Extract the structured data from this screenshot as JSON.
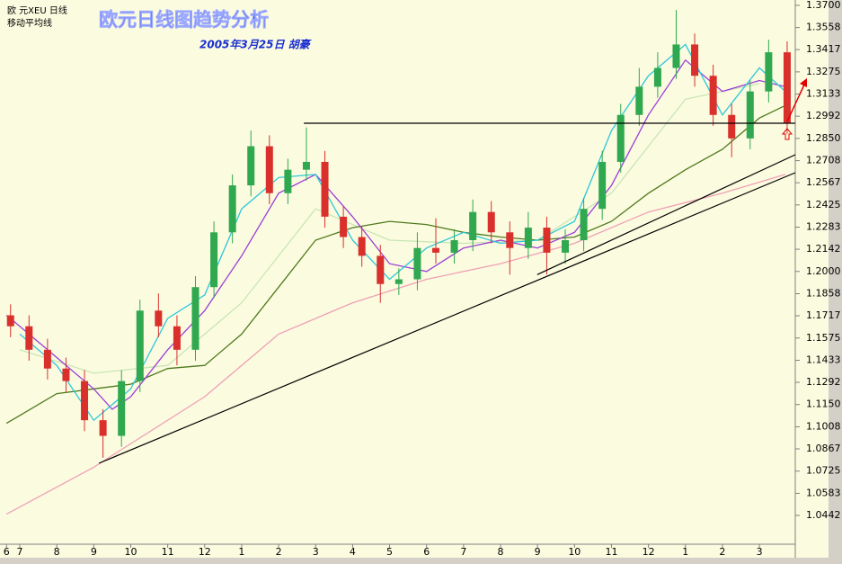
{
  "chart_data": {
    "type": "candlestick",
    "header": "欧  元XEU  日线",
    "indicator": "移动平均线",
    "title": "欧元日线图趋势分析",
    "subtitle": "2005年3月25日 胡豪",
    "up_color": "#2fa84f",
    "down_color": "#d9302c",
    "xlim": [
      0.465,
      21.97
    ],
    "xticks": [
      {
        "value": 0.64,
        "label": "6"
      },
      {
        "value": 1,
        "label": "7"
      },
      {
        "value": 2,
        "label": "8"
      },
      {
        "value": 3,
        "label": "9"
      },
      {
        "value": 4,
        "label": "10"
      },
      {
        "value": 5,
        "label": "11"
      },
      {
        "value": 6,
        "label": "12"
      },
      {
        "value": 7,
        "label": "1"
      },
      {
        "value": 8,
        "label": "2"
      },
      {
        "value": 9,
        "label": "3"
      },
      {
        "value": 10,
        "label": "4"
      },
      {
        "value": 11,
        "label": "5"
      },
      {
        "value": 12,
        "label": "6"
      },
      {
        "value": 13,
        "label": "7"
      },
      {
        "value": 14,
        "label": "8"
      },
      {
        "value": 15,
        "label": "9"
      },
      {
        "value": 16,
        "label": "10"
      },
      {
        "value": 17,
        "label": "11"
      },
      {
        "value": 18,
        "label": "12"
      },
      {
        "value": 19,
        "label": "1"
      },
      {
        "value": 20,
        "label": "2"
      },
      {
        "value": 21,
        "label": "3"
      }
    ],
    "ylim": [
      1.0258,
      1.3734
    ],
    "yticks": [
      {
        "value": 1.37,
        "label": "1.3700"
      },
      {
        "value": 1.3558,
        "label": "1.3558"
      },
      {
        "value": 1.3417,
        "label": "1.3417"
      },
      {
        "value": 1.3275,
        "label": "1.3275"
      },
      {
        "value": 1.3133,
        "label": "1.3133"
      },
      {
        "value": 1.2992,
        "label": "1.2992"
      },
      {
        "value": 1.285,
        "label": "1.2850"
      },
      {
        "value": 1.2708,
        "label": "1.2708"
      },
      {
        "value": 1.2567,
        "label": "1.2567"
      },
      {
        "value": 1.2425,
        "label": "1.2425"
      },
      {
        "value": 1.2283,
        "label": "1.2283"
      },
      {
        "value": 1.2142,
        "label": "1.2142"
      },
      {
        "value": 1.2,
        "label": "1.2000"
      },
      {
        "value": 1.1858,
        "label": "1.1858"
      },
      {
        "value": 1.1717,
        "label": "1.1717"
      },
      {
        "value": 1.1575,
        "label": "1.1575"
      },
      {
        "value": 1.1433,
        "label": "1.1433"
      },
      {
        "value": 1.1292,
        "label": "1.1292"
      },
      {
        "value": 1.115,
        "label": "1.1150"
      },
      {
        "value": 1.1008,
        "label": "1.1008"
      },
      {
        "value": 1.0867,
        "label": "1.0867"
      },
      {
        "value": 1.0725,
        "label": "1.0725"
      },
      {
        "value": 1.0583,
        "label": "1.0583"
      },
      {
        "value": 1.0442,
        "label": "1.0442"
      }
    ],
    "x": [
      0.75,
      1.25,
      1.75,
      2.25,
      2.75,
      3.25,
      3.75,
      4.25,
      4.75,
      5.25,
      5.75,
      6.25,
      6.75,
      7.25,
      7.75,
      8.25,
      8.75,
      9.25,
      9.75,
      10.25,
      10.75,
      11.25,
      11.75,
      12.25,
      12.75,
      13.25,
      13.75,
      14.25,
      14.75,
      15.25,
      15.75,
      16.25,
      16.75,
      17.25,
      17.75,
      18.25,
      18.75,
      19.25,
      19.75,
      20.25,
      20.75,
      21.25,
      21.75
    ],
    "open": [
      1.172,
      1.165,
      1.15,
      1.138,
      1.13,
      1.105,
      1.095,
      1.13,
      1.175,
      1.165,
      1.15,
      1.19,
      1.225,
      1.255,
      1.28,
      1.25,
      1.265,
      1.27,
      1.235,
      1.222,
      1.21,
      1.192,
      1.195,
      1.215,
      1.212,
      1.22,
      1.238,
      1.225,
      1.215,
      1.228,
      1.212,
      1.22,
      1.24,
      1.27,
      1.3,
      1.318,
      1.33,
      1.345,
      1.325,
      1.3,
      1.285,
      1.315,
      1.34
    ],
    "high": [
      1.179,
      1.172,
      1.157,
      1.145,
      1.137,
      1.112,
      1.137,
      1.182,
      1.186,
      1.172,
      1.197,
      1.232,
      1.262,
      1.29,
      1.287,
      1.272,
      1.292,
      1.277,
      1.242,
      1.229,
      1.217,
      1.202,
      1.225,
      1.234,
      1.227,
      1.246,
      1.245,
      1.232,
      1.238,
      1.235,
      1.227,
      1.247,
      1.277,
      1.307,
      1.33,
      1.34,
      1.367,
      1.352,
      1.332,
      1.307,
      1.322,
      1.348,
      1.347
    ],
    "low": [
      1.158,
      1.143,
      1.131,
      1.123,
      1.098,
      1.081,
      1.088,
      1.123,
      1.158,
      1.14,
      1.143,
      1.183,
      1.218,
      1.248,
      1.243,
      1.243,
      1.258,
      1.228,
      1.215,
      1.203,
      1.18,
      1.185,
      1.188,
      1.205,
      1.205,
      1.213,
      1.218,
      1.198,
      1.208,
      1.198,
      1.205,
      1.213,
      1.233,
      1.263,
      1.293,
      1.311,
      1.323,
      1.318,
      1.293,
      1.273,
      1.278,
      1.308,
      1.288
    ],
    "close": [
      1.165,
      1.15,
      1.138,
      1.13,
      1.105,
      1.095,
      1.13,
      1.175,
      1.165,
      1.15,
      1.19,
      1.225,
      1.255,
      1.28,
      1.25,
      1.265,
      1.27,
      1.235,
      1.222,
      1.21,
      1.192,
      1.195,
      1.215,
      1.212,
      1.22,
      1.238,
      1.225,
      1.215,
      1.228,
      1.212,
      1.22,
      1.24,
      1.27,
      1.3,
      1.318,
      1.33,
      1.345,
      1.325,
      1.3,
      1.285,
      1.315,
      1.34,
      1.295
    ],
    "series": [
      {
        "color": "#c8e6b4",
        "x": [
          1,
          3,
          5,
          7,
          9,
          11,
          13,
          15,
          17,
          19,
          21
        ],
        "values": [
          1.15,
          1.135,
          1.14,
          1.18,
          1.24,
          1.22,
          1.218,
          1.22,
          1.25,
          1.31,
          1.32
        ]
      },
      {
        "color": "#f0a0b4",
        "x": [
          0.64,
          3,
          6,
          8,
          10,
          12,
          14,
          16,
          18,
          20,
          21.7
        ],
        "values": [
          1.045,
          1.075,
          1.12,
          1.16,
          1.18,
          1.195,
          1.205,
          1.218,
          1.238,
          1.25,
          1.262
        ]
      },
      {
        "color": "#4f7a1e",
        "x": [
          0.64,
          1,
          2,
          3,
          4,
          5,
          6,
          7,
          8,
          9,
          10,
          11,
          12,
          13,
          14,
          15,
          16,
          17,
          18,
          19,
          20,
          21,
          21.7
        ],
        "values": [
          1.103,
          1.108,
          1.122,
          1.125,
          1.128,
          1.138,
          1.14,
          1.16,
          1.19,
          1.22,
          1.228,
          1.232,
          1.23,
          1.225,
          1.222,
          1.22,
          1.222,
          1.232,
          1.25,
          1.265,
          1.278,
          1.298,
          1.306
        ]
      },
      {
        "color": "#9b3fd6",
        "x": [
          0.64,
          1,
          2,
          3,
          3.5,
          4,
          5,
          6,
          7,
          8,
          9,
          10,
          11,
          12,
          13,
          14,
          15,
          16,
          17,
          18,
          19,
          20,
          21,
          21.7
        ],
        "values": [
          1.172,
          1.165,
          1.145,
          1.125,
          1.112,
          1.12,
          1.15,
          1.175,
          1.21,
          1.25,
          1.262,
          1.235,
          1.205,
          1.2,
          1.215,
          1.22,
          1.215,
          1.225,
          1.255,
          1.3,
          1.335,
          1.315,
          1.322,
          1.318
        ]
      },
      {
        "color": "#2ec8d8",
        "x": [
          1,
          2,
          3,
          4,
          5,
          6,
          7,
          8,
          9,
          10,
          11,
          12,
          13,
          14,
          15,
          16,
          17,
          18,
          19,
          20,
          21,
          21.7
        ],
        "values": [
          1.16,
          1.14,
          1.105,
          1.125,
          1.17,
          1.185,
          1.24,
          1.26,
          1.262,
          1.22,
          1.195,
          1.215,
          1.225,
          1.218,
          1.22,
          1.232,
          1.29,
          1.325,
          1.345,
          1.3,
          1.33,
          1.315
        ]
      }
    ],
    "lines": [
      {
        "color": "#000000",
        "x": [
          3.14,
          21.97
        ],
        "values": [
          1.0775,
          1.2631
        ]
      },
      {
        "color": "#000000",
        "x": [
          14.99,
          21.97
        ],
        "values": [
          1.198,
          1.2746
        ]
      },
      {
        "color": "#000000",
        "x": [
          8.68,
          21.97
        ],
        "values": [
          1.2947,
          1.2947
        ]
      }
    ]
  }
}
